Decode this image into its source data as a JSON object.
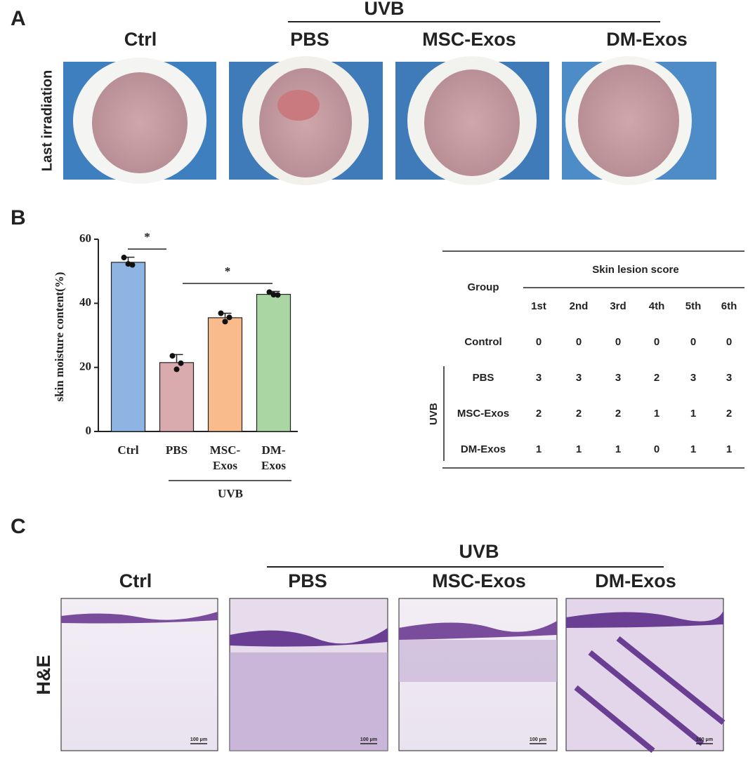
{
  "panel_a": {
    "label": "A",
    "group": "UVB",
    "columns": [
      "Ctrl",
      "PBS",
      "MSC-Exos",
      "DM-Exos"
    ],
    "row_label": "Last irradiation"
  },
  "panel_b": {
    "label": "B"
  },
  "chart_data": {
    "type": "bar",
    "y_label": "skin moisture content(%)",
    "categories": [
      "Ctrl",
      "PBS",
      "MSC-Exos",
      "DM-Exos"
    ],
    "values": [
      52.8,
      21.5,
      35.5,
      42.8
    ],
    "errors": [
      1.6,
      2.5,
      1.4,
      0.9
    ],
    "points": [
      [
        54.3,
        52.0,
        52.3
      ],
      [
        23.6,
        21.3,
        19.4
      ],
      [
        36.9,
        35.6,
        34.3
      ],
      [
        43.5,
        42.6,
        42.7
      ]
    ],
    "colors": [
      "#8db4e2",
      "#d9aaae",
      "#f9bb8b",
      "#a9d6a3"
    ],
    "ylim": [
      0,
      60
    ],
    "yticks": [
      0,
      20,
      40,
      60
    ],
    "annotations": [
      "*",
      "*"
    ],
    "x_group_label": "UVB"
  },
  "table": {
    "group_header": "Group",
    "score_header": "Skin lesion score",
    "columns": [
      "1st",
      "2nd",
      "3rd",
      "4th",
      "5th",
      "6th"
    ],
    "side_label": "UVB",
    "rows": [
      {
        "group": "Control",
        "scores": [
          "0",
          "0",
          "0",
          "0",
          "0",
          "0"
        ]
      },
      {
        "group": "PBS",
        "scores": [
          "3",
          "3",
          "3",
          "2",
          "3",
          "3"
        ]
      },
      {
        "group": "MSC-Exos",
        "scores": [
          "2",
          "2",
          "2",
          "1",
          "1",
          "2"
        ]
      },
      {
        "group": "DM-Exos",
        "scores": [
          "1",
          "1",
          "1",
          "0",
          "1",
          "1"
        ]
      }
    ]
  },
  "panel_c": {
    "label": "C",
    "group": "UVB",
    "columns": [
      "Ctrl",
      "PBS",
      "MSC-Exos",
      "DM-Exos"
    ],
    "row_label": "H&E",
    "scale_bars": [
      "100 μm",
      "100 μm",
      "100 μm",
      "100 μm"
    ]
  }
}
